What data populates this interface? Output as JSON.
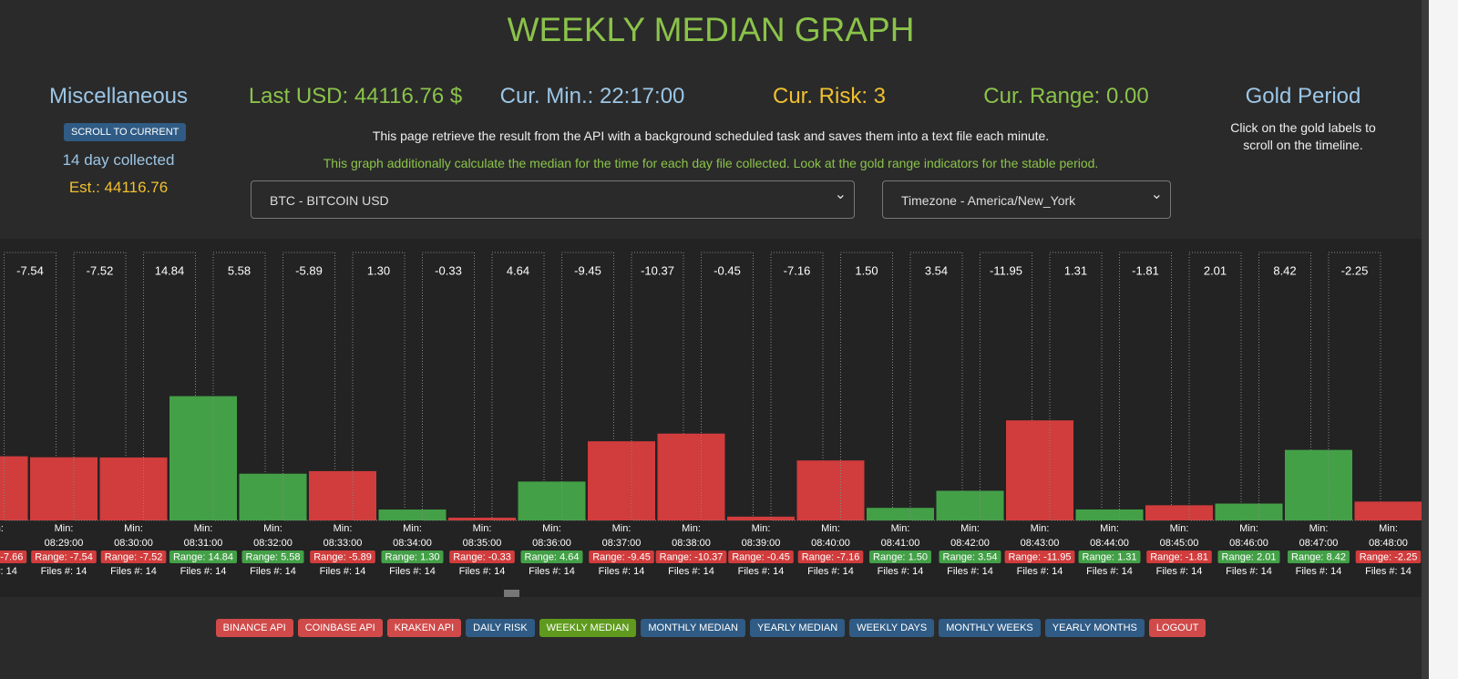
{
  "header": {
    "title": "WEEKLY MEDIAN GRAPH"
  },
  "stats": {
    "misc": "Miscellaneous",
    "last_usd": "Last USD: 44116.76 $",
    "cur_min": "Cur. Min.: 22:17:00",
    "cur_risk": "Cur. Risk: 3",
    "cur_range": "Cur. Range: 0.00",
    "gold_period": "Gold Period"
  },
  "misc": {
    "button": "SCROLL TO CURRENT",
    "collected": "14 day collected",
    "estimate": "Est.: 44116.76"
  },
  "gold_note": "Click on the gold labels to scroll on the timeline.",
  "description": [
    "This page retrieve the result from the API with a background scheduled task and saves them into a text file each minute.",
    "This graph additionally calculate the median for the time for each day file collected. Look at the gold range indicators for the stable period."
  ],
  "selects": [
    "BTC - BITCOIN USD",
    "Timezone - America/New_York"
  ],
  "chart_data": {
    "type": "bar",
    "categories": [
      null,
      "08:29:00",
      "08:30:00",
      "08:31:00",
      "08:32:00",
      "08:33:00",
      "08:34:00",
      "08:35:00",
      "08:36:00",
      "08:37:00",
      "08:38:00",
      "08:39:00",
      "08:40:00",
      "08:41:00",
      "08:42:00",
      "08:43:00",
      "08:44:00",
      "08:45:00",
      "08:46:00",
      "08:47:00",
      "08:48:00"
    ],
    "values": [
      -7.66,
      -7.54,
      -7.52,
      14.84,
      5.58,
      -5.89,
      1.3,
      -0.33,
      4.64,
      -9.45,
      -10.37,
      -0.45,
      -7.16,
      1.5,
      3.54,
      -11.95,
      1.31,
      -1.81,
      2.01,
      8.42,
      -2.25
    ],
    "value_labels": [
      "-7.66",
      "-7.54",
      "-7.52",
      "14.84",
      "5.58",
      "-5.89",
      "1.30",
      "-0.33",
      "4.64",
      "-9.45",
      "-10.37",
      "-0.45",
      "-7.16",
      "1.50",
      "3.54",
      "-11.95",
      "1.31",
      "-1.81",
      "2.01",
      "8.42",
      "-2.25"
    ],
    "min_label": "Min:",
    "range_label": "Range:",
    "files_label": "Files #:",
    "files": [
      14,
      14,
      14,
      14,
      14,
      14,
      14,
      14,
      14,
      14,
      14,
      14,
      14,
      14,
      14,
      14,
      14,
      14,
      14,
      14,
      14
    ],
    "ylim": [
      0,
      32
    ],
    "positive_color": "#43a047",
    "negative_color": "#d13c3c"
  },
  "nav": [
    {
      "label": "BINANCE API",
      "color": "#d04a4a"
    },
    {
      "label": "COINBASE API",
      "color": "#d04a4a"
    },
    {
      "label": "KRAKEN API",
      "color": "#d04a4a"
    },
    {
      "label": "DAILY RISK",
      "color": "#2f5b85"
    },
    {
      "label": "WEEKLY MEDIAN",
      "color": "#5f9a1e"
    },
    {
      "label": "MONTHLY MEDIAN",
      "color": "#2f5b85"
    },
    {
      "label": "YEARLY MEDIAN",
      "color": "#2f5b85"
    },
    {
      "label": "WEEKLY DAYS",
      "color": "#2f5b85"
    },
    {
      "label": "MONTHLY WEEKS",
      "color": "#2f5b85"
    },
    {
      "label": "YEARLY MONTHS",
      "color": "#2f5b85"
    },
    {
      "label": "LOGOUT",
      "color": "#d04a4a"
    }
  ]
}
